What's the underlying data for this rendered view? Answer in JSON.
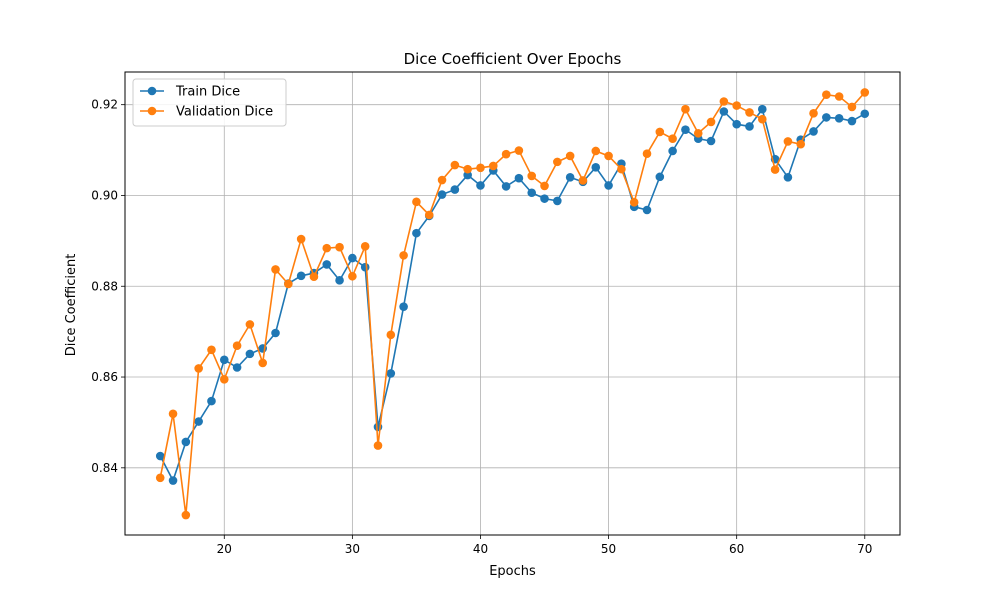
{
  "chart_data": {
    "type": "line",
    "title": "Dice Coefficient Over Epochs",
    "xlabel": "Epochs",
    "ylabel": "Dice Coefficient",
    "xlim": [
      12.25,
      72.75
    ],
    "ylim": [
      0.8252,
      0.9272
    ],
    "xticks": [
      20,
      30,
      40,
      50,
      60,
      70
    ],
    "xtick_labels": [
      "20",
      "30",
      "40",
      "50",
      "60",
      "70"
    ],
    "yticks": [
      0.84,
      0.86,
      0.88,
      0.9,
      0.92
    ],
    "ytick_labels": [
      "0.84",
      "0.86",
      "0.88",
      "0.90",
      "0.92"
    ],
    "grid": true,
    "legend_position": "upper-left",
    "x": [
      15,
      16,
      17,
      18,
      19,
      20,
      21,
      22,
      23,
      24,
      25,
      26,
      27,
      28,
      29,
      30,
      31,
      32,
      33,
      34,
      35,
      36,
      37,
      38,
      39,
      40,
      41,
      42,
      43,
      44,
      45,
      46,
      47,
      48,
      49,
      50,
      51,
      52,
      53,
      54,
      55,
      56,
      57,
      58,
      59,
      60,
      61,
      62,
      63,
      64,
      65,
      66,
      67,
      68,
      69,
      70
    ],
    "series": [
      {
        "name": "Train Dice",
        "color": "#1f77b4",
        "values": [
          0.8426,
          0.8372,
          0.8457,
          0.8502,
          0.8547,
          0.8638,
          0.8621,
          0.8651,
          0.8663,
          0.8697,
          0.8806,
          0.8823,
          0.8829,
          0.8848,
          0.8813,
          0.8862,
          0.8842,
          0.849,
          0.8608,
          0.8755,
          0.8917,
          0.8955,
          0.9002,
          0.9013,
          0.9045,
          0.9022,
          0.9055,
          0.902,
          0.9038,
          0.9006,
          0.8993,
          0.8988,
          0.904,
          0.903,
          0.9062,
          0.9022,
          0.907,
          0.8975,
          0.8968,
          0.9041,
          0.9098,
          0.9145,
          0.9125,
          0.912,
          0.9185,
          0.9157,
          0.9152,
          0.919,
          0.908,
          0.904,
          0.9123,
          0.9141,
          0.9172,
          0.917,
          0.9164,
          0.918
        ]
      },
      {
        "name": "Validation Dice",
        "color": "#ff7f0e",
        "values": [
          0.8378,
          0.8519,
          0.8296,
          0.8619,
          0.866,
          0.8595,
          0.8669,
          0.8716,
          0.8631,
          0.8837,
          0.8805,
          0.8904,
          0.8821,
          0.8884,
          0.8886,
          0.8822,
          0.8888,
          0.8449,
          0.8693,
          0.8868,
          0.8986,
          0.8957,
          0.9034,
          0.9067,
          0.9058,
          0.9061,
          0.9065,
          0.9091,
          0.9099,
          0.9043,
          0.9021,
          0.9074,
          0.9087,
          0.9033,
          0.9098,
          0.9087,
          0.9058,
          0.8985,
          0.9092,
          0.914,
          0.9125,
          0.919,
          0.9137,
          0.9162,
          0.9207,
          0.9198,
          0.9183,
          0.9168,
          0.9057,
          0.9119,
          0.9113,
          0.9181,
          0.9222,
          0.9218,
          0.9195,
          0.9227
        ]
      }
    ]
  }
}
